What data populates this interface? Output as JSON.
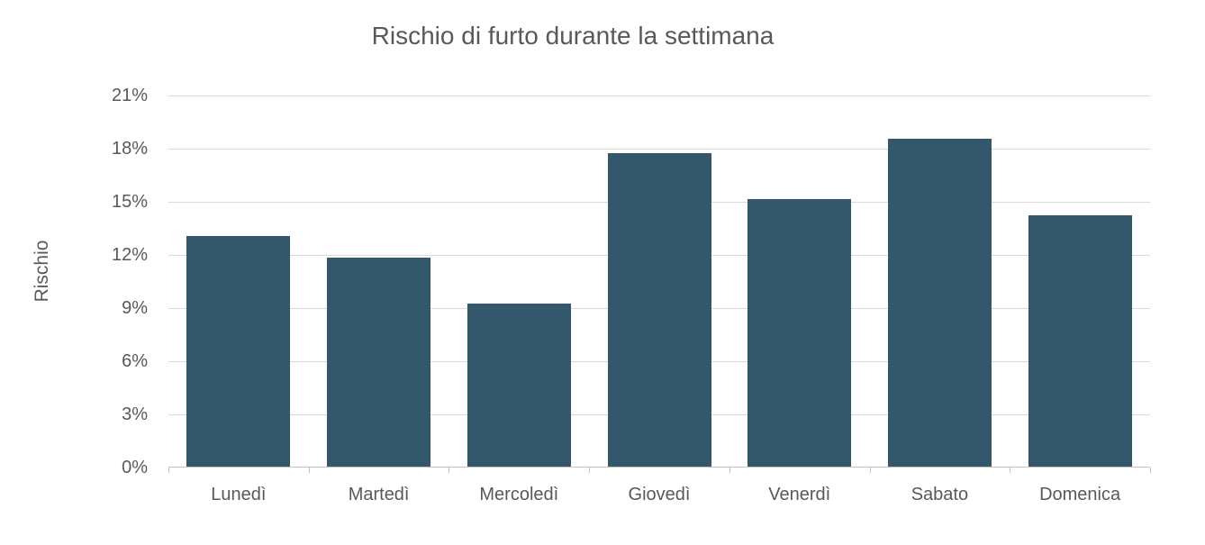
{
  "chart_data": {
    "type": "bar",
    "title": "Rischio di furto durante la settimana",
    "ylabel": "Rischio",
    "xlabel": "",
    "categories": [
      "Lunedì",
      "Martedì",
      "Mercoledì",
      "Giovedì",
      "Venerdì",
      "Sabato",
      "Domenica"
    ],
    "values": [
      13.0,
      11.8,
      9.2,
      17.7,
      15.1,
      18.5,
      14.2
    ],
    "ylim": [
      0,
      21
    ],
    "y_ticks": [
      0,
      3,
      6,
      9,
      12,
      15,
      18,
      21
    ],
    "y_tick_labels": [
      "0%",
      "3%",
      "6%",
      "9%",
      "12%",
      "15%",
      "18%",
      "21%"
    ],
    "grid": true,
    "legend": false,
    "bar_color": "#34586b",
    "gridline_color": "#d9d9d9",
    "axis_color": "#c3c3c3",
    "text_color": "#595959"
  }
}
